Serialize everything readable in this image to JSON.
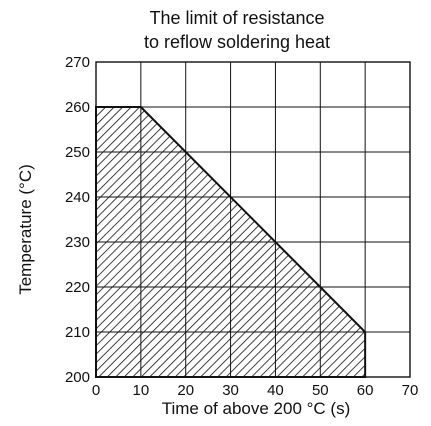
{
  "chart_data": {
    "type": "area",
    "title": [
      "The limit of resistance",
      "to reflow soldering heat"
    ],
    "xlabel": "Time of above 200 °C (s)",
    "ylabel": "Temperature (°C)",
    "xlim": [
      0,
      70
    ],
    "ylim": [
      200,
      270
    ],
    "x_ticks": [
      "0",
      "10",
      "20",
      "30",
      "40",
      "50",
      "60",
      "70"
    ],
    "y_ticks": [
      "200",
      "210",
      "220",
      "230",
      "240",
      "250",
      "260",
      "270"
    ],
    "grid": true,
    "fill": "hatched",
    "series": [
      {
        "x": [
          0,
          10,
          60,
          60
        ],
        "y": [
          260,
          260,
          210,
          200
        ]
      }
    ]
  }
}
